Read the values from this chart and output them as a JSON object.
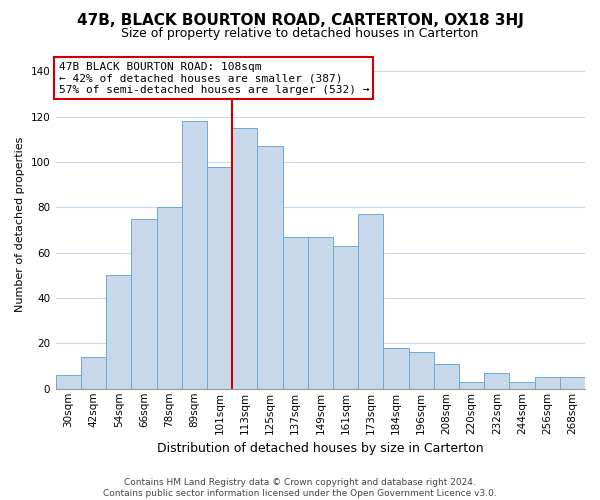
{
  "title": "47B, BLACK BOURTON ROAD, CARTERTON, OX18 3HJ",
  "subtitle": "Size of property relative to detached houses in Carterton",
  "xlabel": "Distribution of detached houses by size in Carterton",
  "ylabel": "Number of detached properties",
  "footer_line1": "Contains HM Land Registry data © Crown copyright and database right 2024.",
  "footer_line2": "Contains public sector information licensed under the Open Government Licence v3.0.",
  "categories": [
    "30sqm",
    "42sqm",
    "54sqm",
    "66sqm",
    "78sqm",
    "89sqm",
    "101sqm",
    "113sqm",
    "125sqm",
    "137sqm",
    "149sqm",
    "161sqm",
    "173sqm",
    "184sqm",
    "196sqm",
    "208sqm",
    "220sqm",
    "232sqm",
    "244sqm",
    "256sqm",
    "268sqm"
  ],
  "values": [
    6,
    14,
    50,
    75,
    80,
    118,
    98,
    115,
    107,
    67,
    67,
    63,
    77,
    18,
    16,
    11,
    3,
    7,
    3,
    5,
    5
  ],
  "bar_color": "#c8d8ea",
  "bar_edge_color": "#6aaad4",
  "red_line_after_index": 6,
  "annotation_text_line1": "47B BLACK BOURTON ROAD: 108sqm",
  "annotation_text_line2": "← 42% of detached houses are smaller (387)",
  "annotation_text_line3": "57% of semi-detached houses are larger (532) →",
  "annotation_box_edge_color": "#cc0000",
  "annotation_box_face_color": "#ffffff",
  "red_line_color": "#cc0000",
  "ylim": [
    0,
    145
  ],
  "yticks": [
    0,
    20,
    40,
    60,
    80,
    100,
    120,
    140
  ],
  "background_color": "#ffffff",
  "grid_color": "#c8daea",
  "title_fontsize": 11,
  "subtitle_fontsize": 9,
  "xlabel_fontsize": 9,
  "ylabel_fontsize": 8,
  "tick_fontsize": 7.5,
  "footer_fontsize": 6.5
}
